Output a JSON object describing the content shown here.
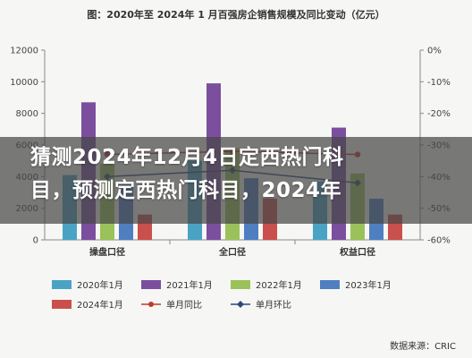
{
  "overlay": {
    "line1": "猜测2024年12月4日定西热门科",
    "line2": "目，预测定西热门科目，2024年"
  },
  "source": "数据来源：CRIC",
  "colors": {
    "2020年1月": "#4aa3c4",
    "2021年1月": "#7b4f9e",
    "2022年1月": "#9bc25a",
    "2023年1月": "#4f7fc0",
    "2024年1月": "#c9504c",
    "单月同比": "#c0392b",
    "单月环比": "#2b4a7a"
  },
  "chart_data": {
    "type": "bar",
    "title": "图：2020年至 2024年 1 月百强房企销售规模及同比变动（亿元）",
    "categories": [
      "操盘口径",
      "全口径",
      "权益口径"
    ],
    "series": [
      {
        "name": "2020年1月",
        "values": [
          4100,
          5000,
          3700
        ]
      },
      {
        "name": "2021年1月",
        "values": [
          8700,
          9900,
          7100
        ]
      },
      {
        "name": "2022年1月",
        "values": [
          4800,
          5800,
          4200
        ]
      },
      {
        "name": "2023年1月",
        "values": [
          3500,
          3900,
          2600
        ]
      },
      {
        "name": "2024年1月",
        "values": [
          1600,
          2600,
          1600
        ]
      }
    ],
    "lines": [
      {
        "name": "单月同比",
        "values": [
          -33,
          -32,
          -33
        ]
      },
      {
        "name": "单月环比",
        "values": [
          -40,
          -38,
          -42
        ]
      }
    ],
    "ylim": [
      0,
      12000
    ],
    "yticks": [
      "0",
      "2000",
      "4000",
      "6000",
      "8000",
      "10000",
      "12000"
    ],
    "y2lim": [
      -60,
      0
    ],
    "y2ticks": [
      "0%",
      "-10%",
      "-20%",
      "-30%",
      "-40%",
      "-50%",
      "-60%"
    ],
    "legend": [
      "2020年1月",
      "2021年1月",
      "2022年1月",
      "2023年1月",
      "2024年1月",
      "单月同比",
      "单月环比"
    ],
    "grid": false,
    "legend_position": "bottom"
  }
}
